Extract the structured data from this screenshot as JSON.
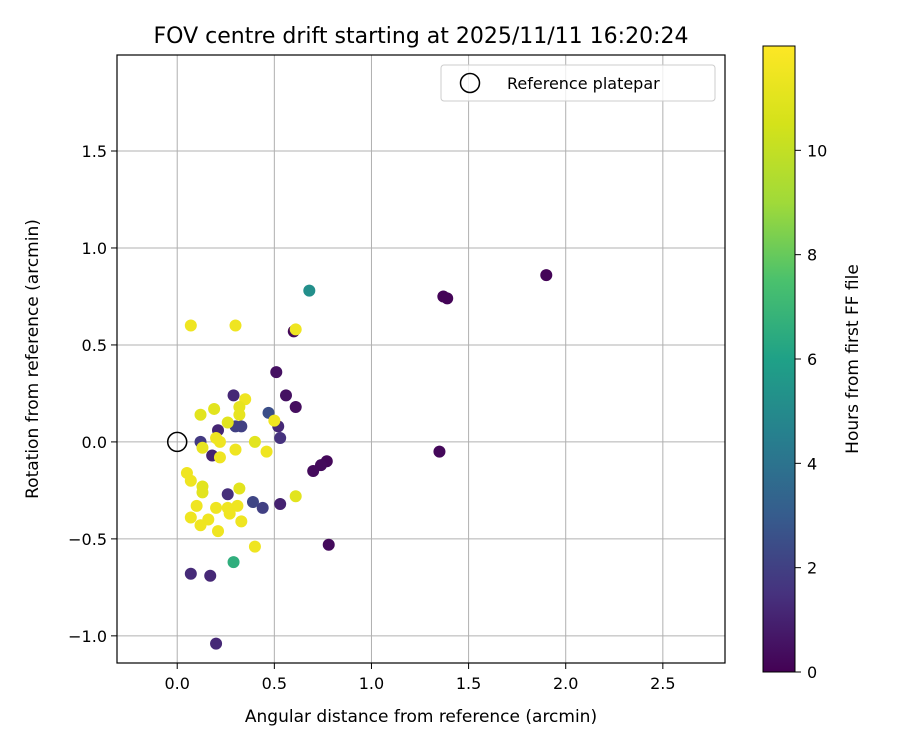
{
  "chart_data": {
    "type": "scatter",
    "title": "FOV centre drift starting at 2025/11/11 16:20:24",
    "xlabel": "Angular distance from reference (arcmin)",
    "ylabel": "Rotation from reference (arcmin)",
    "xlim": [
      -0.31,
      2.82
    ],
    "ylim": [
      -1.14,
      1.995
    ],
    "xticks": [
      0.0,
      0.5,
      1.0,
      1.5,
      2.0,
      2.5
    ],
    "yticks": [
      -1.0,
      -0.5,
      0.0,
      0.5,
      1.0,
      1.5
    ],
    "xtick_labels": [
      "0.0",
      "0.5",
      "1.0",
      "1.5",
      "2.0",
      "2.5"
    ],
    "ytick_labels": [
      "−1.0",
      "−0.5",
      "0.0",
      "0.5",
      "1.0",
      "1.5"
    ],
    "grid": true,
    "legend": {
      "position": "top-right",
      "entries": [
        "Reference platepar"
      ]
    },
    "reference_point": {
      "x": 0.0,
      "y": 0.0,
      "label": "Reference platepar"
    },
    "colorbar": {
      "label": "Hours from first FF file",
      "range": [
        0,
        12
      ],
      "ticks": [
        0,
        2,
        4,
        6,
        8,
        10
      ],
      "tick_labels": [
        "0",
        "2",
        "4",
        "6",
        "8",
        "10"
      ],
      "colormap": "viridis"
    },
    "points": [
      {
        "x": 1.9,
        "y": 0.86,
        "hours": 0.1
      },
      {
        "x": 1.37,
        "y": 0.75,
        "hours": 0.1
      },
      {
        "x": 1.39,
        "y": 0.74,
        "hours": 0.1
      },
      {
        "x": 1.35,
        "y": -0.05,
        "hours": 0.2
      },
      {
        "x": 0.77,
        "y": -0.1,
        "hours": 0.2
      },
      {
        "x": 0.74,
        "y": -0.12,
        "hours": 0.3
      },
      {
        "x": 0.7,
        "y": -0.15,
        "hours": 0.3
      },
      {
        "x": 0.78,
        "y": -0.53,
        "hours": 0.3
      },
      {
        "x": 0.6,
        "y": 0.57,
        "hours": 0.2
      },
      {
        "x": 0.51,
        "y": 0.36,
        "hours": 0.5
      },
      {
        "x": 0.56,
        "y": 0.24,
        "hours": 0.5
      },
      {
        "x": 0.61,
        "y": 0.18,
        "hours": 0.4
      },
      {
        "x": 0.52,
        "y": 0.08,
        "hours": 1.2
      },
      {
        "x": 0.53,
        "y": 0.02,
        "hours": 1.5
      },
      {
        "x": 0.47,
        "y": 0.15,
        "hours": 2.5
      },
      {
        "x": 0.29,
        "y": 0.24,
        "hours": 1.2
      },
      {
        "x": 0.53,
        "y": -0.32,
        "hours": 1.0
      },
      {
        "x": 0.44,
        "y": -0.34,
        "hours": 2.0
      },
      {
        "x": 0.39,
        "y": -0.31,
        "hours": 2.2
      },
      {
        "x": 0.26,
        "y": -0.27,
        "hours": 1.4
      },
      {
        "x": 0.21,
        "y": 0.06,
        "hours": 1.1
      },
      {
        "x": 0.18,
        "y": -0.07,
        "hours": 1.0
      },
      {
        "x": 0.3,
        "y": 0.08,
        "hours": 2.0
      },
      {
        "x": 0.33,
        "y": 0.08,
        "hours": 2.0
      },
      {
        "x": 0.12,
        "y": 0.0,
        "hours": 1.8
      },
      {
        "x": 0.07,
        "y": -0.68,
        "hours": 1.3
      },
      {
        "x": 0.17,
        "y": -0.69,
        "hours": 1.2
      },
      {
        "x": 0.2,
        "y": -1.04,
        "hours": 1.2
      },
      {
        "x": 0.68,
        "y": 0.78,
        "hours": 5.2
      },
      {
        "x": 0.29,
        "y": -0.62,
        "hours": 6.6
      },
      {
        "x": 0.07,
        "y": 0.6,
        "hours": 11.5
      },
      {
        "x": 0.3,
        "y": 0.6,
        "hours": 11.5
      },
      {
        "x": 0.61,
        "y": 0.58,
        "hours": 11.5
      },
      {
        "x": 0.35,
        "y": 0.22,
        "hours": 11.5
      },
      {
        "x": 0.32,
        "y": 0.18,
        "hours": 11.2
      },
      {
        "x": 0.32,
        "y": 0.14,
        "hours": 11.2
      },
      {
        "x": 0.19,
        "y": 0.17,
        "hours": 11.0
      },
      {
        "x": 0.12,
        "y": 0.14,
        "hours": 11.0
      },
      {
        "x": 0.26,
        "y": 0.1,
        "hours": 11.0
      },
      {
        "x": 0.5,
        "y": 0.11,
        "hours": 11.5
      },
      {
        "x": 0.2,
        "y": 0.02,
        "hours": 11.5
      },
      {
        "x": 0.22,
        "y": 0.0,
        "hours": 11.5
      },
      {
        "x": 0.4,
        "y": 0.0,
        "hours": 11.0
      },
      {
        "x": 0.13,
        "y": -0.03,
        "hours": 11.2
      },
      {
        "x": 0.3,
        "y": -0.04,
        "hours": 11.5
      },
      {
        "x": 0.46,
        "y": -0.05,
        "hours": 11.5
      },
      {
        "x": 0.22,
        "y": -0.08,
        "hours": 11.5
      },
      {
        "x": 0.05,
        "y": -0.16,
        "hours": 11.5
      },
      {
        "x": 0.07,
        "y": -0.2,
        "hours": 11.5
      },
      {
        "x": 0.13,
        "y": -0.23,
        "hours": 11.0
      },
      {
        "x": 0.13,
        "y": -0.26,
        "hours": 11.0
      },
      {
        "x": 0.32,
        "y": -0.24,
        "hours": 11.0
      },
      {
        "x": 0.61,
        "y": -0.28,
        "hours": 11.0
      },
      {
        "x": 0.1,
        "y": -0.33,
        "hours": 11.5
      },
      {
        "x": 0.2,
        "y": -0.34,
        "hours": 11.5
      },
      {
        "x": 0.26,
        "y": -0.34,
        "hours": 11.5
      },
      {
        "x": 0.31,
        "y": -0.33,
        "hours": 11.5
      },
      {
        "x": 0.27,
        "y": -0.37,
        "hours": 11.5
      },
      {
        "x": 0.07,
        "y": -0.39,
        "hours": 11.5
      },
      {
        "x": 0.16,
        "y": -0.4,
        "hours": 11.5
      },
      {
        "x": 0.33,
        "y": -0.41,
        "hours": 11.5
      },
      {
        "x": 0.12,
        "y": -0.43,
        "hours": 11.5
      },
      {
        "x": 0.21,
        "y": -0.46,
        "hours": 11.5
      },
      {
        "x": 0.4,
        "y": -0.54,
        "hours": 11.5
      }
    ]
  }
}
